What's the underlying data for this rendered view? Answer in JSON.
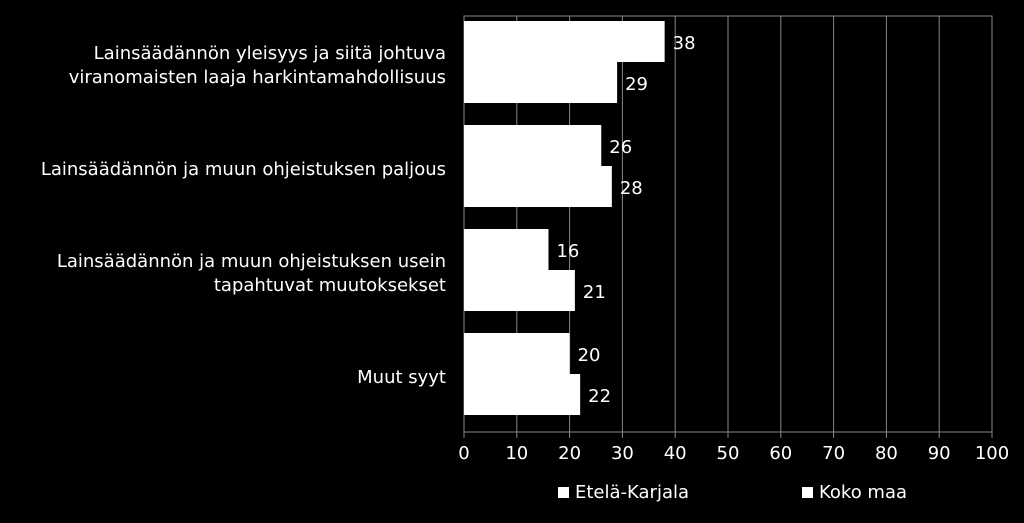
{
  "chart_data": {
    "type": "bar",
    "orientation": "horizontal",
    "categories": [
      [
        "Lainsäädännön yleisyys ja siitä johtuva",
        "viranomaisten laaja harkintamahdollisuus"
      ],
      [
        "Lainsäädännön ja muun ohjeistuksen paljous"
      ],
      [
        "Lainsäädännön ja muun ohjeistuksen usein",
        "tapahtuvat muutoksekset"
      ],
      [
        "Muut syyt"
      ]
    ],
    "series": [
      {
        "name": "Etelä-Karjala",
        "values": [
          38,
          26,
          16,
          20
        ]
      },
      {
        "name": "Koko maa",
        "values": [
          29,
          28,
          21,
          22
        ]
      }
    ],
    "xlim": [
      0,
      100
    ],
    "xticks": [
      "0",
      "10",
      "20",
      "30",
      "40",
      "50",
      "60",
      "70",
      "80",
      "90",
      "100"
    ],
    "grid": true,
    "legend": "bottom",
    "colors": {
      "background": "#000000",
      "bars": "#ffffff",
      "text": "#ffffff"
    }
  }
}
